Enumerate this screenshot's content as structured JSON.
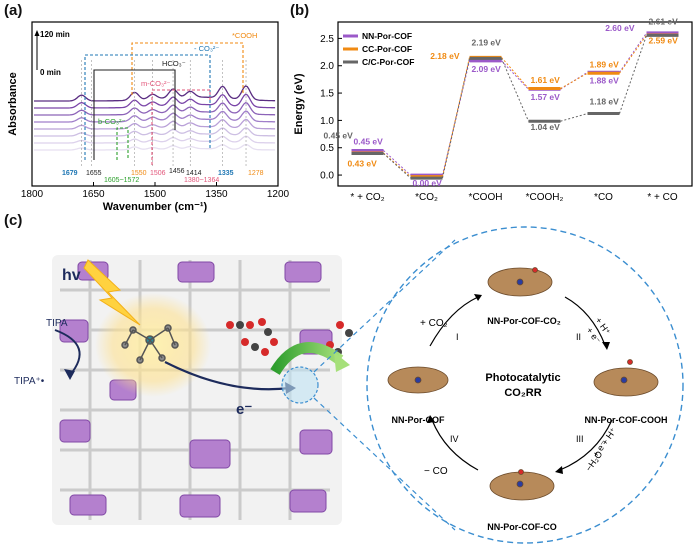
{
  "panel_labels": {
    "a": "(a)",
    "b": "(b)",
    "c": "(c)"
  },
  "chart_data": [
    {
      "type": "line",
      "panel": "(a)",
      "xlabel": "Wavenumber (cm⁻¹)",
      "ylabel": "Absorbance",
      "xlim": [
        1800,
        1200
      ],
      "x_ticks": [
        "1800",
        "1650",
        "1500",
        "1350",
        "1200"
      ],
      "time_top": "120 min",
      "time_bottom": "0 min",
      "peaks": [
        "1679",
        "1655",
        "1605~1572",
        "1550",
        "1506",
        "1456",
        "1414",
        "1380~1364",
        "1335",
        "1278"
      ],
      "assignments": [
        "*COOH",
        "- CO₃²⁻",
        "HCO₃⁻",
        "m-CO₃²⁻",
        "b-CO₃²⁻"
      ],
      "grid": false
    },
    {
      "type": "line",
      "panel": "(b)",
      "ylabel": "Energy (eV)",
      "ylim": [
        -0.2,
        2.8
      ],
      "y_ticks": [
        "0.0",
        "0.5",
        "1.0",
        "1.5",
        "2.0",
        "2.5"
      ],
      "categories": [
        "* + CO₂",
        "*CO₂",
        "*COOH",
        "*COOH₂",
        "*CO",
        "* + CO"
      ],
      "legend_position": "top-left",
      "series": [
        {
          "name": "NN-Por-COF",
          "values": [
            0.45,
            0.0,
            2.09,
            1.57,
            1.88,
            2.6
          ],
          "labels": [
            "0.45 eV",
            "0.00 eV",
            "2.09 eV",
            "1.57 eV",
            "1.88 eV",
            "2.60 eV"
          ]
        },
        {
          "name": "CC-Por-COF",
          "values": [
            0.43,
            0.0,
            2.18,
            1.61,
            1.89,
            2.59
          ],
          "labels": [
            "0.43 eV",
            "",
            "2.18 eV",
            "1.61 eV",
            "1.89 eV",
            "2.59 eV"
          ]
        },
        {
          "name": "C/C-Por-COF",
          "values": [
            0.45,
            0.0,
            2.19,
            1.04,
            1.18,
            2.61
          ],
          "labels": [
            "0.45 eV",
            "",
            "2.19 eV",
            "1.04 eV",
            "1.18 eV",
            "2.61 eV"
          ]
        }
      ],
      "grid": false
    }
  ],
  "diagram": {
    "hv": "hv",
    "tipa": "TIPA",
    "tipa_plus": "TIPA⁺•",
    "electron": "e⁻",
    "center_line1": "Photocatalytic",
    "center_line2": "CO₂RR",
    "states": [
      "NN-Por-COF-CO₂",
      "NN-Por-COF-COOH",
      "NN-Por-COF-CO",
      "NN-Por-COF"
    ],
    "steps": [
      "I",
      "II",
      "III",
      "IV"
    ],
    "step_labels": [
      "+ CO₂",
      "+ H⁺",
      "+ e⁻",
      "+ H⁺",
      "+ e⁻",
      "−H₂O",
      "− CO"
    ]
  },
  "colors": {
    "nn": "#9b59c9",
    "cc": "#f08a12",
    "cc2": "#666666",
    "blue": "#1f77b4",
    "teal": "#17a2a8"
  }
}
